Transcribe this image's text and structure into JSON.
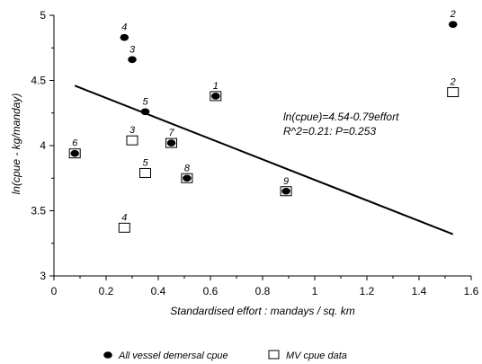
{
  "chart_data": {
    "type": "scatter",
    "title": "",
    "xlabel": "Standardised effort : mandays / sq. km",
    "ylabel": "ln(cpue - kg/manday)",
    "xlim": [
      0,
      1.6
    ],
    "ylim": [
      3,
      5
    ],
    "x_ticks": [
      "0",
      "0.2",
      "0.4",
      "0.6",
      "0.8",
      "1",
      "1.2",
      "1.4",
      "1.6"
    ],
    "y_ticks": [
      "3",
      "3.5",
      "4",
      "4.5",
      "5"
    ],
    "x_tick_values": [
      0,
      0.2,
      0.4,
      0.6,
      0.8,
      1.0,
      1.2,
      1.4,
      1.6
    ],
    "y_tick_values": [
      3,
      3.5,
      4,
      4.5,
      5
    ],
    "grid": false,
    "legend_position": "bottom",
    "series": [
      {
        "name": "All vessel demersal cpue",
        "marker": "filled-circle",
        "color": "#000000",
        "points": [
          {
            "x": 0.62,
            "y": 4.38,
            "label": "1"
          },
          {
            "x": 1.53,
            "y": 4.93,
            "label": "2"
          },
          {
            "x": 0.3,
            "y": 4.66,
            "label": "3"
          },
          {
            "x": 0.27,
            "y": 4.83,
            "label": "4"
          },
          {
            "x": 0.35,
            "y": 4.26,
            "label": "5"
          },
          {
            "x": 0.08,
            "y": 3.94,
            "label": "6"
          },
          {
            "x": 0.45,
            "y": 4.02,
            "label": "7"
          },
          {
            "x": 0.51,
            "y": 3.75,
            "label": "8"
          },
          {
            "x": 0.89,
            "y": 3.65,
            "label": "9"
          }
        ]
      },
      {
        "name": "MV cpue data",
        "marker": "open-square",
        "color": "#000000",
        "points": [
          {
            "x": 0.62,
            "y": 4.38,
            "label": ""
          },
          {
            "x": 1.53,
            "y": 4.41,
            "label": "2"
          },
          {
            "x": 0.3,
            "y": 4.04,
            "label": "3"
          },
          {
            "x": 0.27,
            "y": 3.37,
            "label": "4"
          },
          {
            "x": 0.35,
            "y": 3.79,
            "label": "5"
          },
          {
            "x": 0.08,
            "y": 3.94,
            "label": ""
          },
          {
            "x": 0.45,
            "y": 4.02,
            "label": ""
          },
          {
            "x": 0.51,
            "y": 3.75,
            "label": ""
          },
          {
            "x": 0.89,
            "y": 3.65,
            "label": ""
          }
        ]
      }
    ],
    "regression_line": {
      "x": [
        0.08,
        1.53
      ],
      "y": [
        4.46,
        3.32
      ]
    },
    "annotations": [
      "ln(cpue)=4.54-0.79effort",
      "R^2=0.21: P=0.253"
    ]
  }
}
